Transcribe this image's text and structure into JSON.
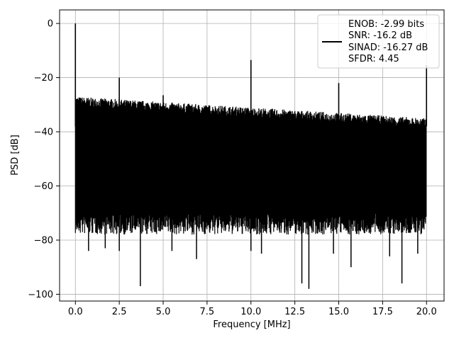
{
  "chart_data": {
    "type": "line",
    "title": "",
    "xlabel": "Frequency [MHz]",
    "ylabel": "PSD [dB]",
    "xlim": [
      -0.9,
      21.0
    ],
    "ylim": [
      -102.5,
      5.0
    ],
    "grid": true,
    "x_ticks": [
      0.0,
      2.5,
      5.0,
      7.5,
      10.0,
      12.5,
      15.0,
      17.5,
      20.0
    ],
    "x_tick_labels": [
      "0.0",
      "2.5",
      "5.0",
      "7.5",
      "10.0",
      "12.5",
      "15.0",
      "17.5",
      "20.0"
    ],
    "y_ticks": [
      0,
      -20,
      -40,
      -60,
      -80,
      -100
    ],
    "y_tick_labels": [
      "0",
      "−20",
      "−40",
      "−60",
      "−80",
      "−100"
    ],
    "series": [
      {
        "color": "#000000",
        "x_range": [
          0.0,
          20.0
        ],
        "noise_top_db": [
          -29,
          -37
        ],
        "noise_bottom_db": -70,
        "spikes": [
          {
            "x": 0.0,
            "y": 0.0
          },
          {
            "x": 2.5,
            "y": -20.0
          },
          {
            "x": 5.0,
            "y": -26.5
          },
          {
            "x": 10.0,
            "y": -13.5
          },
          {
            "x": 15.0,
            "y": -22.0
          },
          {
            "x": 20.0,
            "y": -15.5
          }
        ],
        "deep_dips": [
          {
            "x": 0.75,
            "y": -84
          },
          {
            "x": 1.7,
            "y": -83
          },
          {
            "x": 2.5,
            "y": -84
          },
          {
            "x": 3.7,
            "y": -97
          },
          {
            "x": 5.5,
            "y": -84
          },
          {
            "x": 6.9,
            "y": -87
          },
          {
            "x": 10.0,
            "y": -84
          },
          {
            "x": 10.6,
            "y": -85
          },
          {
            "x": 12.9,
            "y": -96
          },
          {
            "x": 13.3,
            "y": -98
          },
          {
            "x": 14.7,
            "y": -85
          },
          {
            "x": 15.7,
            "y": -90
          },
          {
            "x": 17.9,
            "y": -86
          },
          {
            "x": 18.6,
            "y": -96
          },
          {
            "x": 19.5,
            "y": -85
          }
        ]
      }
    ],
    "legend": {
      "position": "top-right",
      "entries": [
        "ENOB: -2.99 bits",
        "SNR: -16.2 dB",
        "SINAD: -16.27 dB",
        "SFDR: 4.45"
      ]
    }
  }
}
